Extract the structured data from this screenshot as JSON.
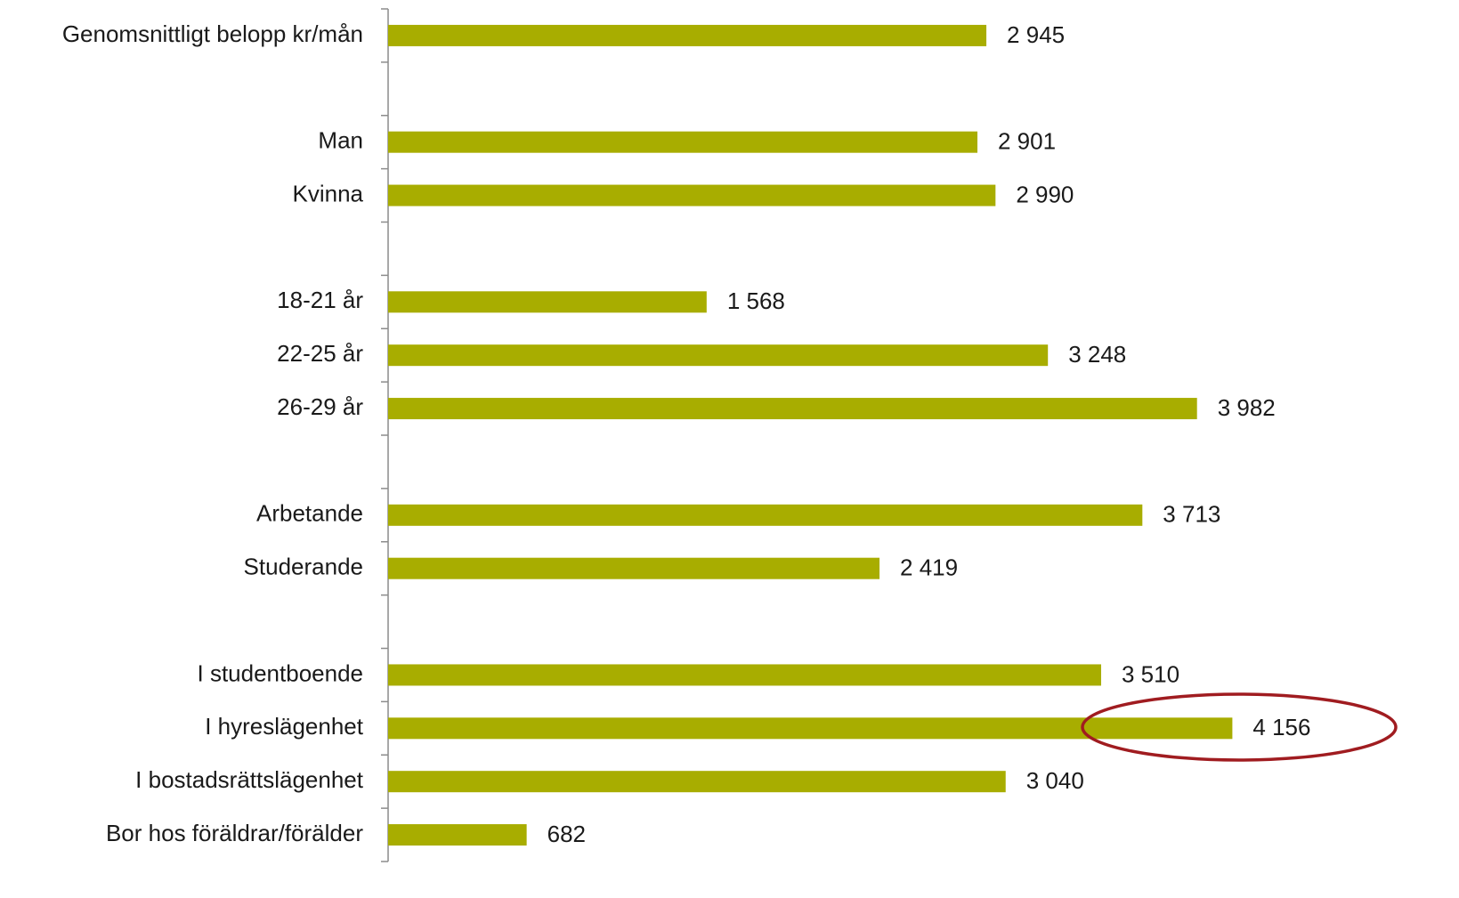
{
  "chart_data": {
    "type": "barh",
    "categories": [
      "Genomsnittligt belopp kr/mån",
      null,
      "Man",
      "Kvinna",
      null,
      "18-21 år",
      "22-25 år",
      "26-29 år",
      null,
      "Arbetande",
      "Studerande",
      null,
      "I studentboende",
      "I hyreslägenhet",
      "I bostadsrättslägenhet",
      "Bor hos föräldrar/förälder"
    ],
    "values": [
      2945,
      null,
      2901,
      2990,
      null,
      1568,
      3248,
      3982,
      null,
      3713,
      2419,
      null,
      3510,
      4156,
      3040,
      682
    ],
    "value_labels": [
      "2 945",
      null,
      "2 901",
      "2 990",
      null,
      "1 568",
      "3 248",
      "3 982",
      null,
      "3 713",
      "2 419",
      null,
      "3 510",
      "4 156",
      "3 040",
      "682"
    ],
    "color": "#a8ad00",
    "xlim": [
      0,
      5000
    ]
  }
}
